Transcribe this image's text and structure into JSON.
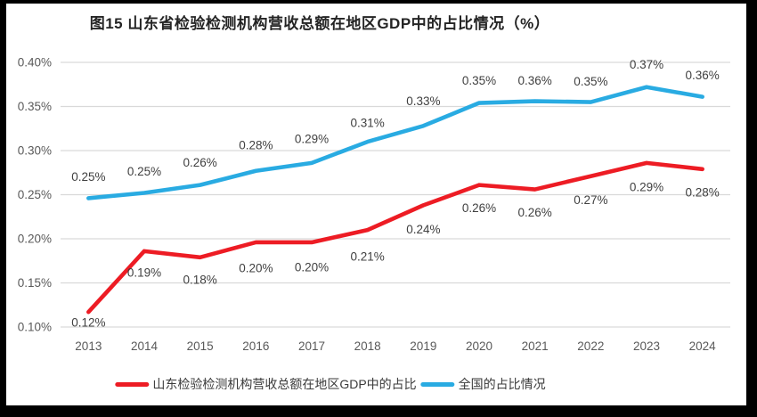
{
  "chart_data": {
    "type": "line",
    "title": "图15  山东省检验检测机构营收总额在地区GDP中的占比情况（%）",
    "categories": [
      "2013",
      "2014",
      "2015",
      "2016",
      "2017",
      "2018",
      "2019",
      "2020",
      "2021",
      "2022",
      "2023",
      "2024"
    ],
    "series": [
      {
        "name": "山东检验检测机构营收总额在地区GDP中的占比",
        "color": "#ED1C24",
        "values": [
          0.12,
          0.19,
          0.18,
          0.2,
          0.2,
          0.21,
          0.24,
          0.26,
          0.26,
          0.27,
          0.29,
          0.28
        ],
        "labels": [
          "0.12%",
          "0.19%",
          "0.18%",
          "0.20%",
          "0.20%",
          "0.21%",
          "0.24%",
          "0.26%",
          "0.26%",
          "0.27%",
          "0.29%",
          "0.28%"
        ],
        "plot_values": [
          0.117,
          0.186,
          0.179,
          0.196,
          0.196,
          0.21,
          0.238,
          0.261,
          0.256,
          0.271,
          0.286,
          0.279
        ],
        "label_dy": [
          12,
          24,
          25,
          29,
          28,
          30,
          27,
          26,
          26,
          27,
          27,
          26
        ],
        "label_position": "below"
      },
      {
        "name": "全国的占比情况",
        "color": "#29ABE2",
        "values": [
          0.25,
          0.25,
          0.26,
          0.28,
          0.29,
          0.31,
          0.33,
          0.35,
          0.36,
          0.35,
          0.37,
          0.36
        ],
        "labels": [
          "0.25%",
          "0.25%",
          "0.26%",
          "0.28%",
          "0.29%",
          "0.31%",
          "0.33%",
          "0.35%",
          "0.36%",
          "0.35%",
          "0.37%",
          "0.36%"
        ],
        "plot_values": [
          0.246,
          0.252,
          0.261,
          0.277,
          0.286,
          0.31,
          0.328,
          0.354,
          0.356,
          0.355,
          0.372,
          0.361
        ],
        "label_dy": [
          -24,
          -24,
          -25,
          -29,
          -27,
          -21,
          -28,
          -25,
          -23,
          -23,
          -25,
          -24
        ],
        "label_position": "above"
      }
    ],
    "y_axis": {
      "min": 0.1,
      "max": 0.4,
      "step": 0.05,
      "ticks": [
        "0.40%",
        "0.35%",
        "0.30%",
        "0.25%",
        "0.20%",
        "0.15%",
        "0.10%"
      ]
    },
    "grid": true,
    "legend_position": "bottom",
    "colors": {
      "gridline": "#D9D9D9",
      "axis_label": "#595959",
      "data_label": "#404040",
      "title": "#242424"
    }
  }
}
